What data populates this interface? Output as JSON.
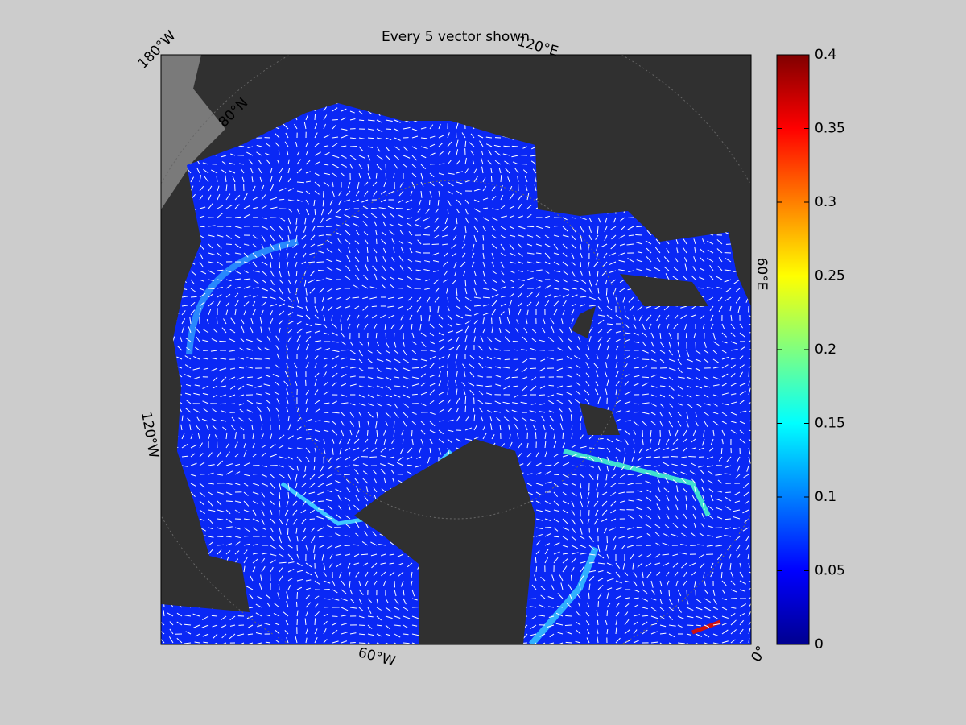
{
  "figure": {
    "title": "Every 5 vector shown",
    "lon_labels": [
      "180°W",
      "120°E",
      "60°E",
      "0°",
      "60°W",
      "120°W"
    ],
    "lat_labels": [
      "80°N"
    ],
    "colorbar": {
      "lim": [
        0,
        0.4
      ],
      "ticks": [
        0,
        0.05,
        0.1,
        0.15,
        0.2,
        0.25,
        0.3,
        0.35,
        0.4
      ]
    }
  }
}
